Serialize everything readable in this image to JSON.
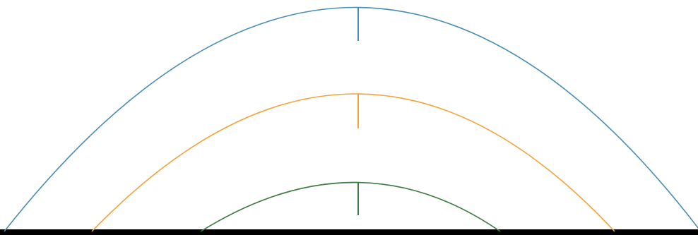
{
  "colors": {
    "background": "#ffffff",
    "ground": "#000000",
    "outer_arc": "#4a8db3",
    "middle_arc": "#f2a33a",
    "inner_arc": "#3f7a45"
  },
  "arcs": [
    {
      "id": "outer",
      "color": "#4a8db3"
    },
    {
      "id": "middle",
      "color": "#f2a33a"
    },
    {
      "id": "inner",
      "color": "#3f7a45"
    }
  ]
}
